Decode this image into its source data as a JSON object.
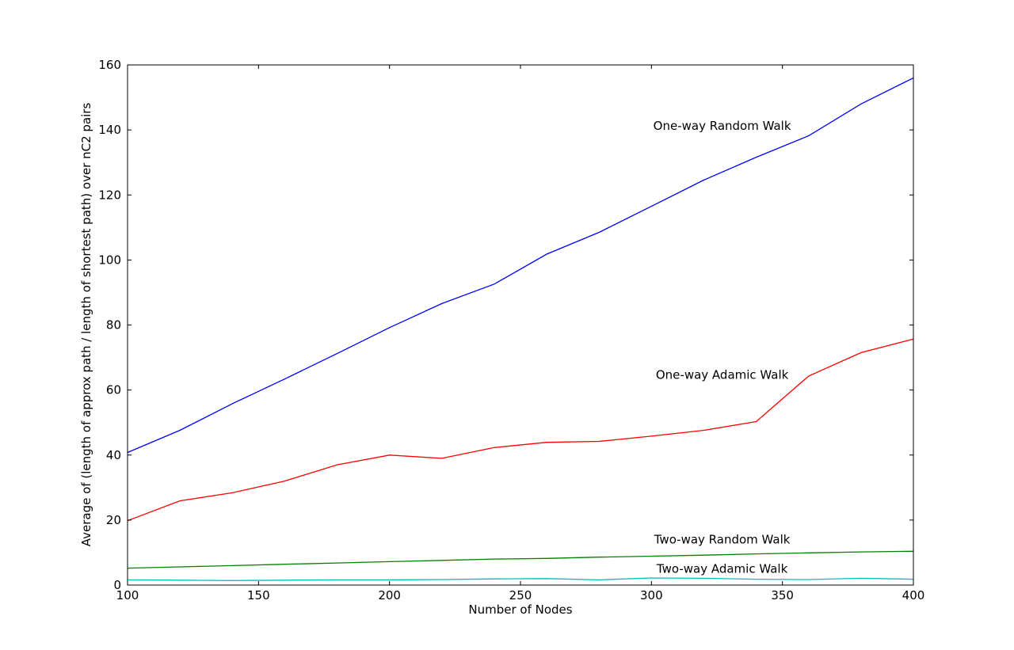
{
  "chart_data": {
    "type": "line",
    "title": "",
    "xlabel": "Number of Nodes",
    "ylabel": "Average of (length of approx path / length of shortest path) over nC2 pairs",
    "xlim": [
      100,
      400
    ],
    "ylim": [
      0,
      160
    ],
    "xticks": [
      100,
      150,
      200,
      250,
      300,
      350,
      400
    ],
    "yticks": [
      0,
      20,
      40,
      60,
      80,
      100,
      120,
      140,
      160
    ],
    "grid": false,
    "legend": "none",
    "x": [
      100,
      120,
      140,
      160,
      180,
      200,
      220,
      240,
      260,
      280,
      300,
      320,
      340,
      360,
      380,
      400
    ],
    "series": [
      {
        "name": "One-way Random Walk",
        "color": "#0000ff",
        "label_at": [
          327,
          140
        ],
        "values": [
          40.8,
          47.6,
          55.8,
          63.4,
          71.2,
          79.2,
          86.6,
          92.6,
          101.8,
          108.5,
          116.5,
          124.6,
          131.6,
          138.2,
          148.0,
          156.0
        ]
      },
      {
        "name": "One-way Adamic Walk",
        "color": "#ff0000",
        "label_at": [
          327,
          63.5
        ],
        "values": [
          19.8,
          25.9,
          28.4,
          32.0,
          37.0,
          40.0,
          39.0,
          42.3,
          43.9,
          44.2,
          45.8,
          47.6,
          50.3,
          64.3,
          71.5,
          75.7
        ]
      },
      {
        "name": "Two-way Random Walk",
        "color": "#008000",
        "label_at": [
          327,
          12.8
        ],
        "values": [
          5.2,
          5.6,
          6.0,
          6.4,
          6.8,
          7.2,
          7.6,
          8.0,
          8.2,
          8.6,
          8.9,
          9.2,
          9.6,
          9.9,
          10.2,
          10.4
        ]
      },
      {
        "name": "Two-way Adamic Walk",
        "color": "#00bfbf",
        "label_at": [
          327,
          3.8
        ],
        "values": [
          1.6,
          1.5,
          1.4,
          1.5,
          1.6,
          1.6,
          1.7,
          1.9,
          2.0,
          1.6,
          2.2,
          2.1,
          1.8,
          1.7,
          2.1,
          1.8
        ]
      }
    ]
  }
}
